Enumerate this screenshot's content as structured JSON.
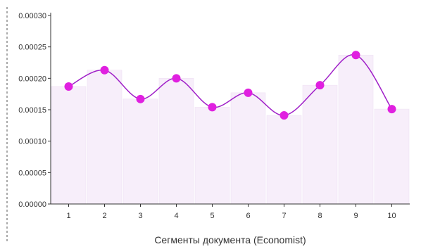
{
  "chart_data": {
    "type": "line",
    "x": [
      1,
      2,
      3,
      4,
      5,
      6,
      7,
      8,
      9,
      10
    ],
    "series": [
      {
        "values": [
          0.000187,
          0.000213,
          0.000167,
          0.0002,
          0.000154,
          0.000177,
          0.000141,
          0.000189,
          0.000237,
          0.000151
        ]
      }
    ],
    "y_ticks": [
      "0.00000",
      "0.00005",
      "0.00010",
      "0.00015",
      "0.00020",
      "0.00025",
      "0.00030"
    ],
    "x_ticks": [
      "1",
      "2",
      "3",
      "4",
      "5",
      "6",
      "7",
      "8",
      "9",
      "10"
    ],
    "xlabel": "Сегменты документа (Economist)",
    "ylabel": "",
    "ylim": [
      0,
      0.0003
    ],
    "grid": false,
    "legend": "none",
    "colors": {
      "line": "#a020c8",
      "marker": "#e020e0",
      "band": "#f7eefa",
      "axis": "#333333"
    }
  }
}
